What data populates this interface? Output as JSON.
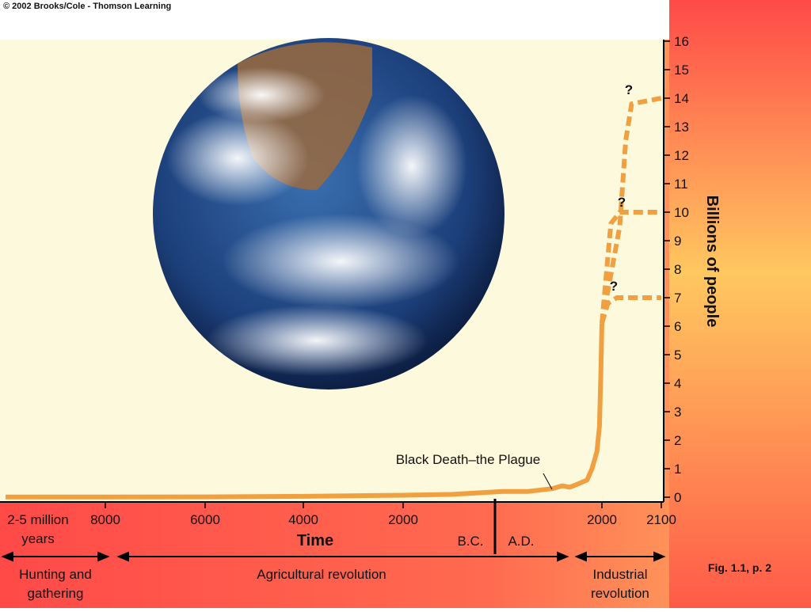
{
  "chart_data": {
    "type": "line",
    "copyright": "© 2002 Brooks/Cole - Thomson Learning",
    "y_label": "Billions of people",
    "x_label": "Time",
    "x_start_label": "2-5 million\nyears",
    "era_before": "B.C.",
    "era_after": "A.D.",
    "periods": [
      "Hunting and\ngathering",
      "Agricultural revolution",
      "Industrial\nrevolution"
    ],
    "annotations": [
      "Black Death–the Plague",
      "?",
      "?",
      "?"
    ],
    "figure_ref": "Fig. 1.1, p. 2",
    "xlim": [
      -10000,
      2100
    ],
    "xticks": [
      {
        "value": -8000,
        "label": "8000"
      },
      {
        "value": -6000,
        "label": "6000"
      },
      {
        "value": -4000,
        "label": "4000"
      },
      {
        "value": -2000,
        "label": "2000"
      },
      2000,
      2100
    ],
    "ylim": [
      0,
      16
    ],
    "yticks": [
      0,
      1,
      2,
      3,
      4,
      5,
      6,
      7,
      8,
      9,
      10,
      11,
      12,
      13,
      14,
      15,
      16
    ],
    "series": [
      {
        "color": "#f0a040",
        "style": "solid",
        "x": [
          -10000,
          -8000,
          -6000,
          -4000,
          -2000,
          -1000,
          0,
          500,
          1000,
          1200,
          1350,
          1500,
          1700,
          1800,
          1900,
          1950,
          1980,
          2000
        ],
        "values": [
          0.005,
          0.005,
          0.01,
          0.03,
          0.07,
          0.1,
          0.2,
          0.2,
          0.3,
          0.4,
          0.35,
          0.45,
          0.6,
          1,
          1.6,
          2.5,
          4.4,
          6.1
        ]
      },
      {
        "color": "#f0a040",
        "style": "dashed",
        "x": [
          2000,
          2010,
          2025,
          2100
        ],
        "values": [
          6.1,
          6.8,
          7,
          7
        ]
      },
      {
        "color": "#f0a040",
        "style": "dashed",
        "x": [
          2000,
          2015,
          2030,
          2100
        ],
        "values": [
          6.1,
          9.6,
          10,
          10
        ]
      },
      {
        "color": "#f0a040",
        "style": "dashed",
        "x": [
          2000,
          2030,
          2040,
          2050,
          2100
        ],
        "values": [
          6.1,
          9.5,
          12.5,
          13.8,
          14
        ]
      }
    ]
  }
}
